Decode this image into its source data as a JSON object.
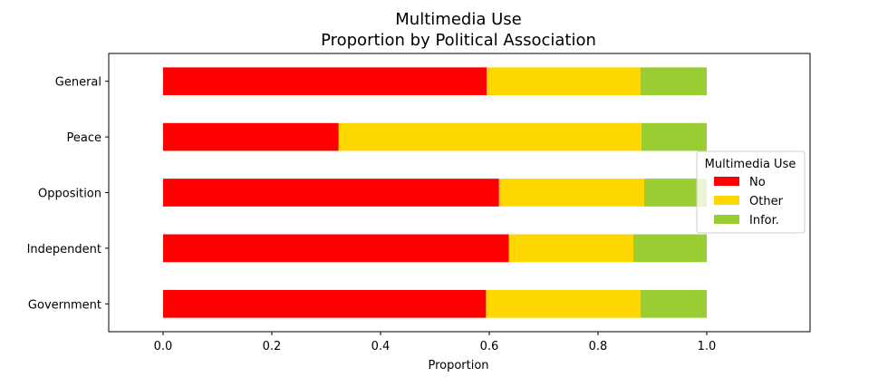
{
  "chart_data": {
    "type": "bar",
    "orientation": "horizontal",
    "stacked": true,
    "title": "Multimedia Use",
    "subtitle": "Proportion by Political Association",
    "xlabel": "Proportion",
    "ylabel": "",
    "xlim": [
      -0.1,
      1.19
    ],
    "xticks": [
      "0.0",
      "0.2",
      "0.4",
      "0.6",
      "0.8",
      "1.0"
    ],
    "xtick_values": [
      0.0,
      0.2,
      0.4,
      0.6,
      0.8,
      1.0
    ],
    "categories": [
      "General",
      "Peace",
      "Opposition",
      "Independent",
      "Government"
    ],
    "series": [
      {
        "name": "No",
        "color": "#ff0000",
        "values": [
          0.595,
          0.323,
          0.618,
          0.636,
          0.594
        ]
      },
      {
        "name": "Other",
        "color": "#ffd700",
        "values": [
          0.283,
          0.557,
          0.267,
          0.229,
          0.284
        ]
      },
      {
        "name": "Infor.",
        "color": "#9acd32",
        "values": [
          0.122,
          0.12,
          0.115,
          0.135,
          0.122
        ]
      }
    ],
    "legend": {
      "title": "Multimedia Use",
      "position": "center-right"
    },
    "grid": false
  }
}
